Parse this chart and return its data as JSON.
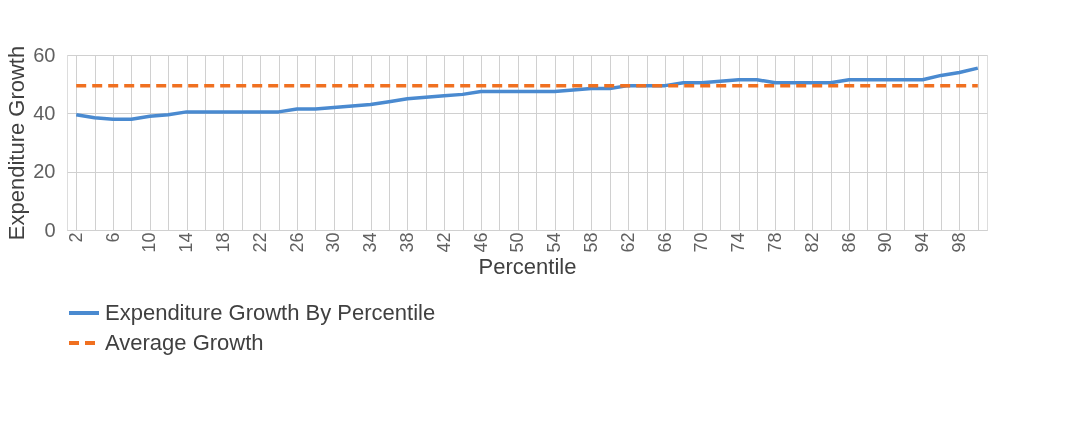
{
  "chart_data": {
    "type": "line",
    "xlabel": "Percentile",
    "ylabel": "Expenditure Growth",
    "categories": [
      "2",
      null,
      "6",
      null,
      "10",
      null,
      "14",
      null,
      "18",
      null,
      "22",
      null,
      "26",
      null,
      "30",
      null,
      "34",
      null,
      "38",
      null,
      "42",
      null,
      "46",
      null,
      "50",
      null,
      "54",
      null,
      "58",
      null,
      "62",
      null,
      "66",
      null,
      "70",
      null,
      "74",
      null,
      "78",
      null,
      "82",
      null,
      "86",
      null,
      "90",
      null,
      "94",
      null,
      "98",
      null
    ],
    "series": [
      {
        "name": "Expenditure Growth By Percentile",
        "color": "#4a8ad0",
        "line_style": "solid",
        "values": [
          39.5,
          38.5,
          38,
          38,
          39,
          39.5,
          40.5,
          40.5,
          40.5,
          40.5,
          40.5,
          40.5,
          41.5,
          41.5,
          42,
          42.5,
          43,
          44,
          45,
          45.5,
          46,
          46.5,
          47.5,
          47.5,
          47.5,
          47.5,
          47.5,
          48,
          48.5,
          48.5,
          49.5,
          49.5,
          49.5,
          50.5,
          50.5,
          51,
          51.5,
          51.5,
          50.5,
          50.5,
          50.5,
          50.5,
          51.5,
          51.5,
          51.5,
          51.5,
          51.5,
          53,
          54,
          55.5
        ]
      },
      {
        "name": "Average Growth",
        "color": "#f07020",
        "line_style": "dashed",
        "values": [
          49.5,
          49.5,
          49.5,
          49.5,
          49.5,
          49.5,
          49.5,
          49.5,
          49.5,
          49.5,
          49.5,
          49.5,
          49.5,
          49.5,
          49.5,
          49.5,
          49.5,
          49.5,
          49.5,
          49.5,
          49.5,
          49.5,
          49.5,
          49.5,
          49.5,
          49.5,
          49.5,
          49.5,
          49.5,
          49.5,
          49.5,
          49.5,
          49.5,
          49.5,
          49.5,
          49.5,
          49.5,
          49.5,
          49.5,
          49.5,
          49.5,
          49.5,
          49.5,
          49.5,
          49.5,
          49.5,
          49.5,
          49.5,
          49.5,
          49.5
        ]
      }
    ],
    "ylim": [
      0,
      60
    ],
    "yticks": [
      0,
      20,
      40,
      60
    ],
    "grid": true,
    "legend": "bottom",
    "marker": "none"
  }
}
